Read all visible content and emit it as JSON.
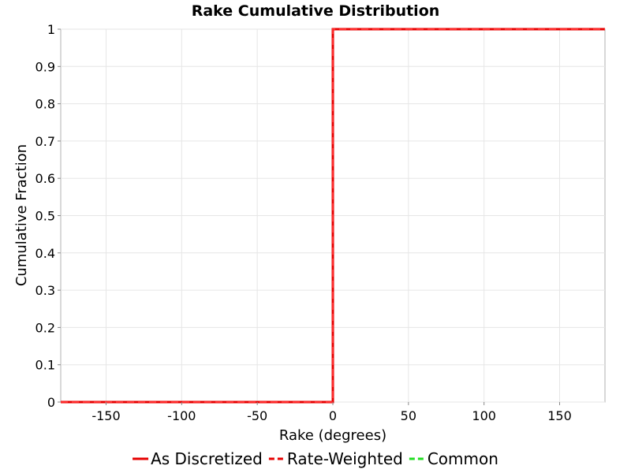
{
  "chart_data": {
    "type": "line",
    "title": "Rake Cumulative Distribution",
    "xlabel": "Rake (degrees)",
    "ylabel": "Cumulative Fraction",
    "xlim": [
      -180,
      180
    ],
    "ylim": [
      0,
      1
    ],
    "x_ticks": [
      -150,
      -100,
      -50,
      0,
      50,
      100,
      150
    ],
    "y_ticks": [
      0,
      0.1,
      0.2,
      0.3,
      0.4,
      0.5,
      0.6,
      0.7,
      0.8,
      0.9,
      1
    ],
    "grid": true,
    "legend_position": "bottom",
    "series": [
      {
        "name": "As Discretized",
        "color": "#e60000",
        "style": "solid",
        "x": [
          -180,
          0,
          0,
          180
        ],
        "y": [
          0,
          0,
          1,
          1
        ]
      },
      {
        "name": "Rate-Weighted",
        "color": "#e60000",
        "style": "dashed",
        "x": [
          -180,
          0,
          0,
          180
        ],
        "y": [
          0,
          0,
          1,
          1
        ]
      },
      {
        "name": "Common",
        "color": "#22dd22",
        "style": "dashed",
        "x": [],
        "y": []
      }
    ]
  }
}
